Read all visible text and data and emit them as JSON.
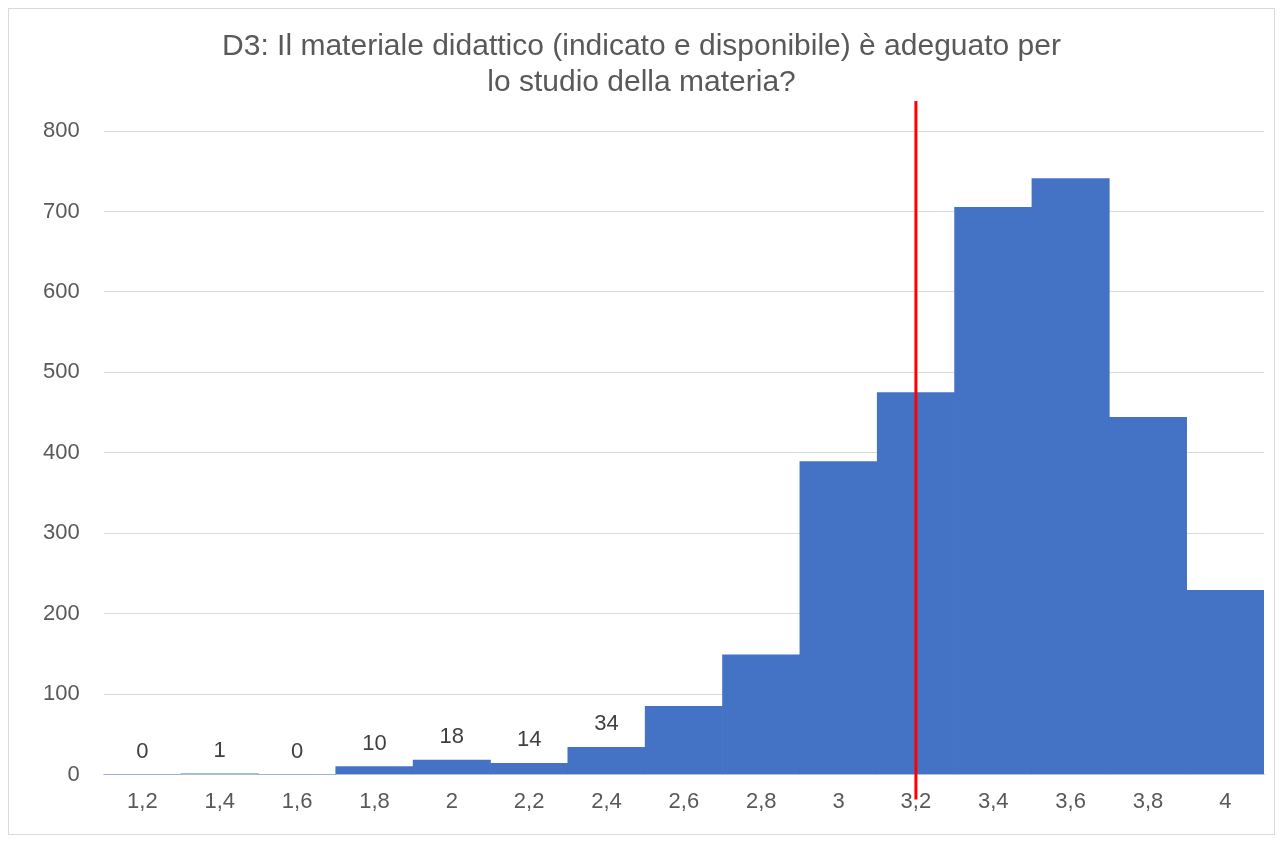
{
  "chart_data": {
    "type": "bar",
    "title": "D3: Il materiale didattico (indicato e disponibile) è adeguato per lo studio della materia?",
    "categories": [
      "1,2",
      "1,4",
      "1,6",
      "1,8",
      "2",
      "2,2",
      "2,4",
      "2,6",
      "2,8",
      "3",
      "3,2",
      "3,4",
      "3,6",
      "3,8",
      "4"
    ],
    "values": [
      0,
      1,
      0,
      10,
      18,
      14,
      34,
      85,
      149,
      389,
      475,
      705,
      741,
      444,
      229
    ],
    "value_labels": [
      "0",
      "1",
      "0",
      "10",
      "18",
      "14",
      "34",
      null,
      null,
      null,
      null,
      null,
      null,
      null,
      null
    ],
    "color": "#4472c4",
    "ylim": [
      0,
      800
    ],
    "yticks": [
      0,
      100,
      200,
      300,
      400,
      500,
      600,
      700,
      800
    ],
    "grid": "y",
    "legend": false,
    "ref_lines": [
      {
        "axis": "x",
        "value": "3,2",
        "color": "#ff0000"
      }
    ]
  }
}
